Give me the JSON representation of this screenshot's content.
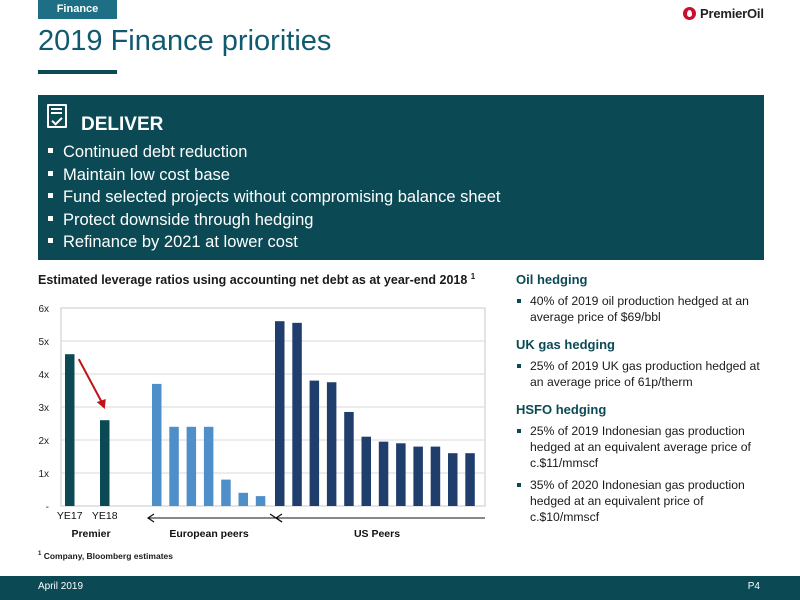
{
  "header": {
    "section_tag": "Finance",
    "brand": "PremierOil",
    "title": "2019 Finance priorities"
  },
  "deliver": {
    "heading": "DELIVER",
    "items": [
      "Continued debt reduction",
      "Maintain low cost base",
      "Fund selected projects without compromising balance sheet",
      "Protect downside through hedging",
      "Refinance by 2021 at lower cost"
    ]
  },
  "chart_heading": "Estimated leverage ratios using accounting net debt as at year-end 2018",
  "chart_heading_note": "1",
  "chart_data": {
    "type": "bar",
    "title": "Estimated leverage ratios using accounting net debt as at year-end 2018",
    "ylim": [
      0,
      6
    ],
    "yticks": [
      "-",
      "1x",
      "2x",
      "3x",
      "4x",
      "5x",
      "6x"
    ],
    "grid": true,
    "groups": [
      {
        "name": "Premier",
        "color": "#0b4a55",
        "labels": [
          "YE17",
          "YE18"
        ],
        "values": [
          4.6,
          2.6
        ]
      },
      {
        "name": "European peers",
        "color": "#4f8fc9",
        "values": [
          3.7,
          2.4,
          2.4,
          2.4,
          0.8,
          0.4,
          0.3
        ]
      },
      {
        "name": "US Peers",
        "color": "#1f3e6c",
        "values": [
          5.6,
          5.55,
          3.8,
          3.75,
          2.85,
          2.1,
          1.95,
          1.9,
          1.8,
          1.8,
          1.6,
          1.6
        ]
      }
    ],
    "annotation": "arrow from YE17 to YE18"
  },
  "footnote": {
    "mark": "1",
    "text": "Company, Bloomberg estimates"
  },
  "hedging": [
    {
      "title": "Oil hedging",
      "items": [
        "40% of 2019 oil production hedged at an average price of $69/bbl"
      ]
    },
    {
      "title": "UK gas hedging",
      "items": [
        "25% of 2019 UK gas production hedged at an average price of 61p/therm"
      ]
    },
    {
      "title": "HSFO hedging",
      "items": [
        "25% of 2019 Indonesian gas production hedged at an equivalent average price of c.$11/mmscf",
        "35% of 2020 Indonesian gas production hedged at an equivalent price of c.$10/mmscf"
      ]
    }
  ],
  "footer": {
    "date": "April 2019",
    "page": "P4"
  },
  "colors": {
    "teal_dark": "#0b4a55",
    "title_blue": "#0f5a6e",
    "arrow_red": "#c0141c"
  }
}
